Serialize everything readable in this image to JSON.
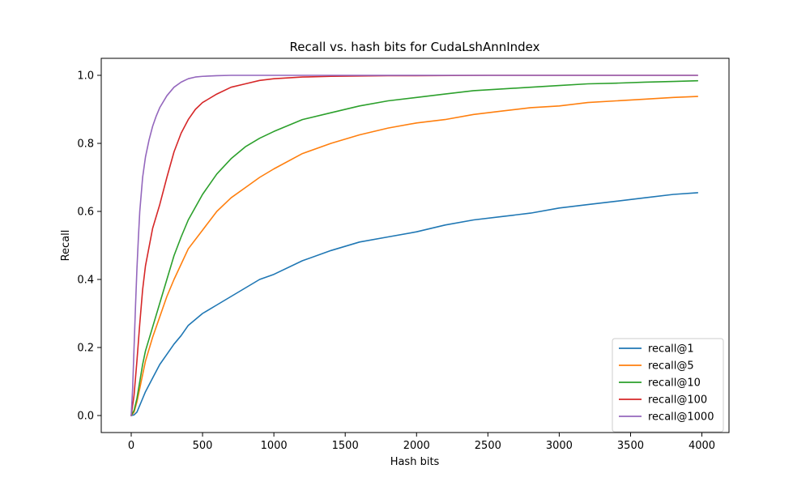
{
  "chart_data": {
    "type": "line",
    "title": "Recall vs. hash bits for CudaLshAnnIndex",
    "xlabel": "Hash bits",
    "ylabel": "Recall",
    "xlim": [
      -210,
      4190
    ],
    "ylim": [
      -0.05,
      1.05
    ],
    "xticks": [
      0,
      500,
      1000,
      1500,
      2000,
      2500,
      3000,
      3500,
      4000
    ],
    "yticks": [
      0.0,
      0.2,
      0.4,
      0.6,
      0.8,
      1.0
    ],
    "xtick_labels": [
      "0",
      "500",
      "1000",
      "1500",
      "2000",
      "2500",
      "3000",
      "3500",
      "4000"
    ],
    "ytick_labels": [
      "0.0",
      "0.2",
      "0.4",
      "0.6",
      "0.8",
      "1.0"
    ],
    "grid": false,
    "legend_position": "lower-right",
    "series": [
      {
        "name": "recall@1",
        "color": "#1f77b4",
        "x": [
          0,
          20,
          40,
          60,
          80,
          100,
          150,
          200,
          250,
          300,
          350,
          400,
          500,
          600,
          700,
          800,
          900,
          1000,
          1200,
          1400,
          1600,
          1800,
          2000,
          2200,
          2400,
          2600,
          2800,
          3000,
          3200,
          3400,
          3600,
          3800,
          3970
        ],
        "values": [
          0.0,
          0.002,
          0.01,
          0.03,
          0.05,
          0.07,
          0.11,
          0.15,
          0.18,
          0.21,
          0.235,
          0.265,
          0.3,
          0.325,
          0.35,
          0.375,
          0.4,
          0.415,
          0.455,
          0.485,
          0.51,
          0.525,
          0.54,
          0.56,
          0.575,
          0.585,
          0.595,
          0.61,
          0.62,
          0.63,
          0.64,
          0.65,
          0.655
        ]
      },
      {
        "name": "recall@5",
        "color": "#ff7f0e",
        "x": [
          0,
          20,
          40,
          60,
          80,
          100,
          150,
          200,
          250,
          300,
          350,
          400,
          500,
          600,
          700,
          800,
          900,
          1000,
          1200,
          1400,
          1600,
          1800,
          2000,
          2200,
          2400,
          2600,
          2800,
          3000,
          3200,
          3400,
          3600,
          3800,
          3970
        ],
        "values": [
          0.0,
          0.01,
          0.04,
          0.08,
          0.12,
          0.16,
          0.23,
          0.29,
          0.35,
          0.4,
          0.445,
          0.49,
          0.545,
          0.6,
          0.64,
          0.67,
          0.7,
          0.725,
          0.77,
          0.8,
          0.825,
          0.845,
          0.86,
          0.87,
          0.885,
          0.895,
          0.905,
          0.91,
          0.92,
          0.925,
          0.93,
          0.935,
          0.938
        ]
      },
      {
        "name": "recall@10",
        "color": "#2ca02c",
        "x": [
          0,
          20,
          40,
          60,
          80,
          100,
          150,
          200,
          250,
          300,
          350,
          400,
          500,
          600,
          700,
          800,
          900,
          1000,
          1200,
          1400,
          1600,
          1800,
          2000,
          2200,
          2400,
          2600,
          2800,
          3000,
          3200,
          3400,
          3600,
          3800,
          3970
        ],
        "values": [
          0.0,
          0.015,
          0.05,
          0.1,
          0.15,
          0.19,
          0.26,
          0.33,
          0.4,
          0.47,
          0.525,
          0.575,
          0.65,
          0.71,
          0.755,
          0.79,
          0.815,
          0.835,
          0.87,
          0.89,
          0.91,
          0.925,
          0.935,
          0.945,
          0.955,
          0.96,
          0.965,
          0.97,
          0.975,
          0.977,
          0.98,
          0.982,
          0.984
        ]
      },
      {
        "name": "recall@100",
        "color": "#d62728",
        "x": [
          0,
          20,
          40,
          60,
          80,
          100,
          150,
          200,
          250,
          300,
          350,
          400,
          450,
          500,
          600,
          700,
          800,
          900,
          1000,
          1200,
          1400,
          1600,
          1800,
          2000,
          2500,
          3000,
          3500,
          3970
        ],
        "values": [
          0.0,
          0.06,
          0.16,
          0.27,
          0.37,
          0.44,
          0.55,
          0.62,
          0.7,
          0.775,
          0.83,
          0.87,
          0.9,
          0.92,
          0.945,
          0.965,
          0.975,
          0.985,
          0.99,
          0.995,
          0.997,
          0.998,
          0.999,
          0.999,
          1.0,
          1.0,
          1.0,
          1.0
        ]
      },
      {
        "name": "recall@1000",
        "color": "#9467bd",
        "x": [
          0,
          10,
          20,
          30,
          40,
          50,
          60,
          80,
          100,
          125,
          150,
          175,
          200,
          250,
          300,
          350,
          400,
          450,
          500,
          600,
          700,
          800,
          1000,
          1500,
          2000,
          3000,
          3970
        ],
        "values": [
          0.0,
          0.08,
          0.2,
          0.32,
          0.43,
          0.52,
          0.6,
          0.7,
          0.76,
          0.81,
          0.85,
          0.88,
          0.905,
          0.94,
          0.965,
          0.98,
          0.99,
          0.995,
          0.997,
          0.999,
          1.0,
          1.0,
          1.0,
          1.0,
          1.0,
          1.0,
          1.0
        ]
      }
    ]
  }
}
